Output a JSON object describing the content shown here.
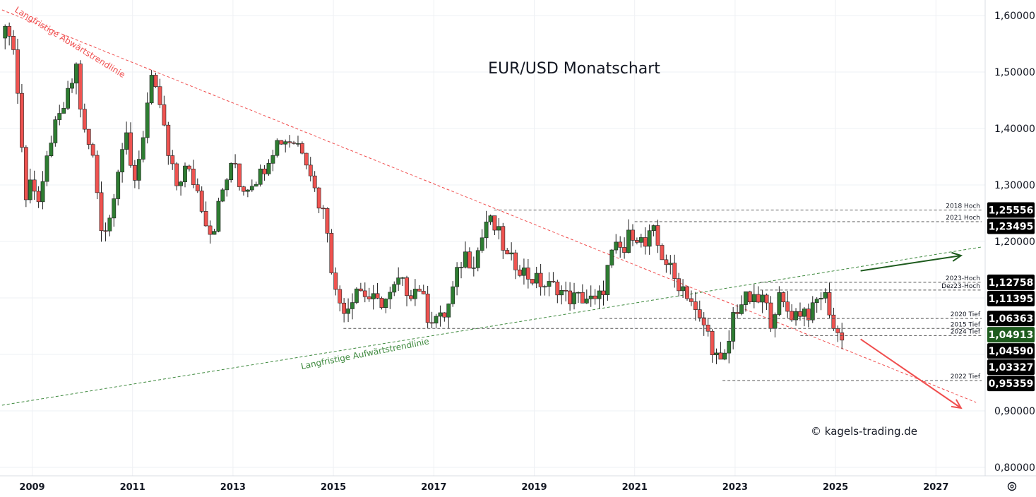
{
  "chart_data": {
    "type": "candlestick",
    "title": "EUR/USD Monatschart",
    "copyright": "© kagels-trading.de",
    "y_axis": {
      "range": [
        0.78,
        1.63
      ],
      "ticks": [
        {
          "value": 1.6,
          "label": "1,60000"
        },
        {
          "value": 1.5,
          "label": "1,50000"
        },
        {
          "value": 1.4,
          "label": "1,40000"
        },
        {
          "value": 1.3,
          "label": "1,30000"
        },
        {
          "value": 1.2,
          "label": "1,20000"
        },
        {
          "value": 0.9,
          "label": "0,90000"
        },
        {
          "value": 0.8,
          "label": "0,80000"
        }
      ]
    },
    "x_axis": {
      "range": [
        2008.4,
        2028.0
      ],
      "ticks": [
        {
          "value": 2009,
          "label": "2009"
        },
        {
          "value": 2011,
          "label": "2011"
        },
        {
          "value": 2013,
          "label": "2013"
        },
        {
          "value": 2015,
          "label": "2015"
        },
        {
          "value": 2017,
          "label": "2017"
        },
        {
          "value": 2019,
          "label": "2019"
        },
        {
          "value": 2021,
          "label": "2021"
        },
        {
          "value": 2023,
          "label": "2023"
        },
        {
          "value": 2025,
          "label": "2025"
        },
        {
          "value": 2027,
          "label": "2027"
        }
      ]
    },
    "price_path": [
      [
        2008.42,
        1.56
      ],
      [
        2008.62,
        1.58
      ],
      [
        2008.75,
        1.47
      ],
      [
        2008.92,
        1.27
      ],
      [
        2009.0,
        1.32
      ],
      [
        2009.2,
        1.26
      ],
      [
        2009.4,
        1.38
      ],
      [
        2009.6,
        1.42
      ],
      [
        2009.8,
        1.47
      ],
      [
        2009.92,
        1.51
      ],
      [
        2010.05,
        1.4
      ],
      [
        2010.25,
        1.35
      ],
      [
        2010.42,
        1.23
      ],
      [
        2010.55,
        1.22
      ],
      [
        2010.72,
        1.32
      ],
      [
        2010.9,
        1.39
      ],
      [
        2011.05,
        1.3
      ],
      [
        2011.2,
        1.36
      ],
      [
        2011.33,
        1.44
      ],
      [
        2011.42,
        1.48
      ],
      [
        2011.6,
        1.44
      ],
      [
        2011.75,
        1.35
      ],
      [
        2011.92,
        1.3
      ],
      [
        2012.1,
        1.33
      ],
      [
        2012.3,
        1.3
      ],
      [
        2012.5,
        1.24
      ],
      [
        2012.62,
        1.21
      ],
      [
        2012.8,
        1.28
      ],
      [
        2012.95,
        1.32
      ],
      [
        2013.1,
        1.34
      ],
      [
        2013.2,
        1.29
      ],
      [
        2013.45,
        1.31
      ],
      [
        2013.6,
        1.32
      ],
      [
        2013.8,
        1.36
      ],
      [
        2013.95,
        1.38
      ],
      [
        2014.2,
        1.38
      ],
      [
        2014.4,
        1.37
      ],
      [
        2014.55,
        1.34
      ],
      [
        2014.7,
        1.28
      ],
      [
        2014.9,
        1.24
      ],
      [
        2015.0,
        1.16
      ],
      [
        2015.1,
        1.1
      ],
      [
        2015.3,
        1.08
      ],
      [
        2015.5,
        1.12
      ],
      [
        2015.75,
        1.1
      ],
      [
        2015.92,
        1.09
      ],
      [
        2016.15,
        1.1
      ],
      [
        2016.35,
        1.13
      ],
      [
        2016.55,
        1.11
      ],
      [
        2016.75,
        1.12
      ],
      [
        2016.95,
        1.06
      ],
      [
        2017.05,
        1.07
      ],
      [
        2017.2,
        1.06
      ],
      [
        2017.35,
        1.09
      ],
      [
        2017.5,
        1.14
      ],
      [
        2017.65,
        1.18
      ],
      [
        2017.8,
        1.16
      ],
      [
        2017.95,
        1.19
      ],
      [
        2018.1,
        1.24
      ],
      [
        2018.2,
        1.23
      ],
      [
        2018.35,
        1.21
      ],
      [
        2018.5,
        1.17
      ],
      [
        2018.7,
        1.16
      ],
      [
        2018.9,
        1.14
      ],
      [
        2019.1,
        1.13
      ],
      [
        2019.3,
        1.12
      ],
      [
        2019.5,
        1.12
      ],
      [
        2019.7,
        1.1
      ],
      [
        2019.9,
        1.1
      ],
      [
        2020.1,
        1.1
      ],
      [
        2020.25,
        1.09
      ],
      [
        2020.4,
        1.11
      ],
      [
        2020.55,
        1.17
      ],
      [
        2020.7,
        1.19
      ],
      [
        2020.85,
        1.18
      ],
      [
        2020.95,
        1.22
      ],
      [
        2021.1,
        1.21
      ],
      [
        2021.25,
        1.19
      ],
      [
        2021.4,
        1.22
      ],
      [
        2021.55,
        1.18
      ],
      [
        2021.7,
        1.16
      ],
      [
        2021.85,
        1.13
      ],
      [
        2022.0,
        1.12
      ],
      [
        2022.15,
        1.1
      ],
      [
        2022.3,
        1.06
      ],
      [
        2022.45,
        1.05
      ],
      [
        2022.6,
        1.01
      ],
      [
        2022.75,
        0.98
      ],
      [
        2022.88,
        1.0
      ],
      [
        2023.0,
        1.07
      ],
      [
        2023.15,
        1.09
      ],
      [
        2023.3,
        1.1
      ],
      [
        2023.45,
        1.09
      ],
      [
        2023.6,
        1.1
      ],
      [
        2023.75,
        1.06
      ],
      [
        2023.9,
        1.1
      ],
      [
        2024.05,
        1.08
      ],
      [
        2024.2,
        1.07
      ],
      [
        2024.4,
        1.08
      ],
      [
        2024.55,
        1.07
      ],
      [
        2024.7,
        1.1
      ],
      [
        2024.8,
        1.11
      ],
      [
        2024.92,
        1.08
      ],
      [
        2025.02,
        1.04
      ],
      [
        2025.1,
        1.035
      ]
    ],
    "levels": [
      {
        "value": 1.25556,
        "x_start": 2018.2,
        "label": "2018 Hoch",
        "badge": "1,25556",
        "badge_color": "#000000"
      },
      {
        "value": 1.23495,
        "x_start": 2021.0,
        "label": "2021 Hoch",
        "badge": "1,23495",
        "badge_color": "#000000"
      },
      {
        "value": 1.12758,
        "x_start": 2023.5,
        "label": "2023-Hoch",
        "badge": "1,12758",
        "badge_color": "#000000"
      },
      {
        "value": 1.11395,
        "x_start": 2023.5,
        "label": "Dez23-Hoch",
        "badge": "1,11395",
        "badge_color": "#000000"
      },
      {
        "value": 1.06363,
        "x_start": 2020.3,
        "label": "2020 Tief",
        "badge": "1,06363",
        "badge_color": "#000000"
      },
      {
        "value": 1.04913,
        "x_start": null,
        "label": "",
        "badge": "1,04913",
        "badge_color": "#1e5b1e"
      },
      {
        "value": 1.0459,
        "x_start": 2015.2,
        "label": "2015 Tief",
        "badge": "1,04590",
        "badge_color": "#000000"
      },
      {
        "value": 1.03327,
        "x_start": 2024.3,
        "label": "2024 Tief",
        "badge": "1,03327",
        "badge_color": "#000000"
      },
      {
        "value": 0.95359,
        "x_start": 2022.75,
        "label": "2022 Tief",
        "badge": "0,95359",
        "badge_color": "#000000"
      }
    ],
    "trendlines": [
      {
        "name": "Langfristige Abwärtstrendlinie",
        "color": "#f04e4e",
        "points": [
          [
            2008.4,
            1.61
          ],
          [
            2027.8,
            0.915
          ]
        ]
      },
      {
        "name": "Langfristige Aufwärtstrendlinie",
        "color": "#3f8a3f",
        "points": [
          [
            2008.4,
            0.91
          ],
          [
            2027.9,
            1.19
          ]
        ]
      }
    ],
    "arrows": [
      {
        "color": "#1e5b1e",
        "from": [
          2025.5,
          1.148
        ],
        "to": [
          2027.5,
          1.175
        ]
      },
      {
        "color": "#f04e4e",
        "from": [
          2025.5,
          1.027
        ],
        "to": [
          2027.5,
          0.905
        ]
      }
    ],
    "colors": {
      "up": "#22ab94",
      "down": "#f23645",
      "up_dark": "#1e5b1e",
      "grid": "#f0f3fa"
    }
  },
  "ui": {
    "settings_icon": "settings-gear-icon"
  }
}
